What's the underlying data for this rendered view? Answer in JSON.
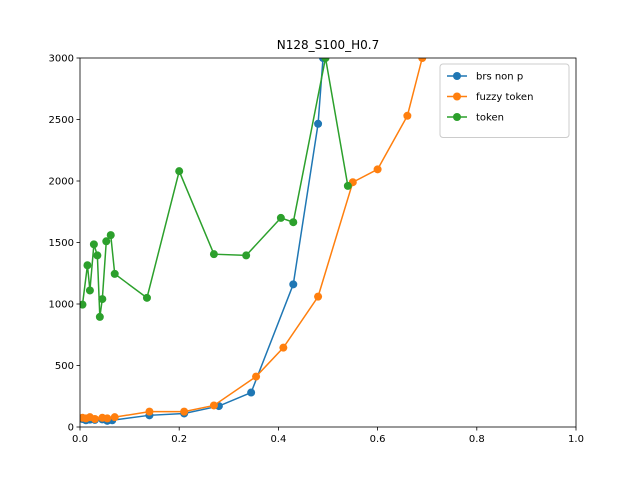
{
  "chart_data": {
    "type": "line",
    "title": "N128_S100_H0.7",
    "xlabel": "",
    "ylabel": "",
    "xlim": [
      0,
      1
    ],
    "ylim": [
      0,
      3000
    ],
    "grid": false,
    "legend_position": "top-right",
    "x_ticks": [
      "0.0",
      "0.2",
      "0.4",
      "0.6",
      "0.8",
      "1.0"
    ],
    "y_ticks": [
      "0",
      "500",
      "1000",
      "1500",
      "2000",
      "2500",
      "3000"
    ],
    "series": [
      {
        "name": "brs non p",
        "color": "#1f77b4",
        "points": [
          [
            0.005,
            65
          ],
          [
            0.012,
            55
          ],
          [
            0.02,
            60
          ],
          [
            0.03,
            58
          ],
          [
            0.045,
            62
          ],
          [
            0.055,
            50
          ],
          [
            0.065,
            55
          ],
          [
            0.14,
            95
          ],
          [
            0.21,
            110
          ],
          [
            0.28,
            170
          ],
          [
            0.345,
            280
          ],
          [
            0.43,
            1160
          ],
          [
            0.48,
            2465
          ],
          [
            0.49,
            3000
          ]
        ]
      },
      {
        "name": "fuzzy token",
        "color": "#ff7f0e",
        "points": [
          [
            0.005,
            75
          ],
          [
            0.012,
            70
          ],
          [
            0.02,
            80
          ],
          [
            0.03,
            65
          ],
          [
            0.045,
            75
          ],
          [
            0.055,
            70
          ],
          [
            0.07,
            80
          ],
          [
            0.14,
            125
          ],
          [
            0.21,
            125
          ],
          [
            0.27,
            175
          ],
          [
            0.355,
            410
          ],
          [
            0.41,
            645
          ],
          [
            0.48,
            1060
          ],
          [
            0.55,
            1990
          ],
          [
            0.6,
            2095
          ],
          [
            0.66,
            2530
          ],
          [
            0.69,
            3000
          ]
        ]
      },
      {
        "name": "token",
        "color": "#2ca02c",
        "points": [
          [
            0.005,
            995
          ],
          [
            0.015,
            1315
          ],
          [
            0.02,
            1110
          ],
          [
            0.028,
            1485
          ],
          [
            0.035,
            1395
          ],
          [
            0.04,
            895
          ],
          [
            0.045,
            1040
          ],
          [
            0.053,
            1510
          ],
          [
            0.062,
            1560
          ],
          [
            0.07,
            1245
          ],
          [
            0.135,
            1050
          ],
          [
            0.2,
            2080
          ],
          [
            0.27,
            1405
          ],
          [
            0.335,
            1395
          ],
          [
            0.405,
            1700
          ],
          [
            0.43,
            1665
          ],
          [
            0.495,
            3000
          ],
          [
            0.54,
            1960
          ]
        ]
      }
    ]
  }
}
